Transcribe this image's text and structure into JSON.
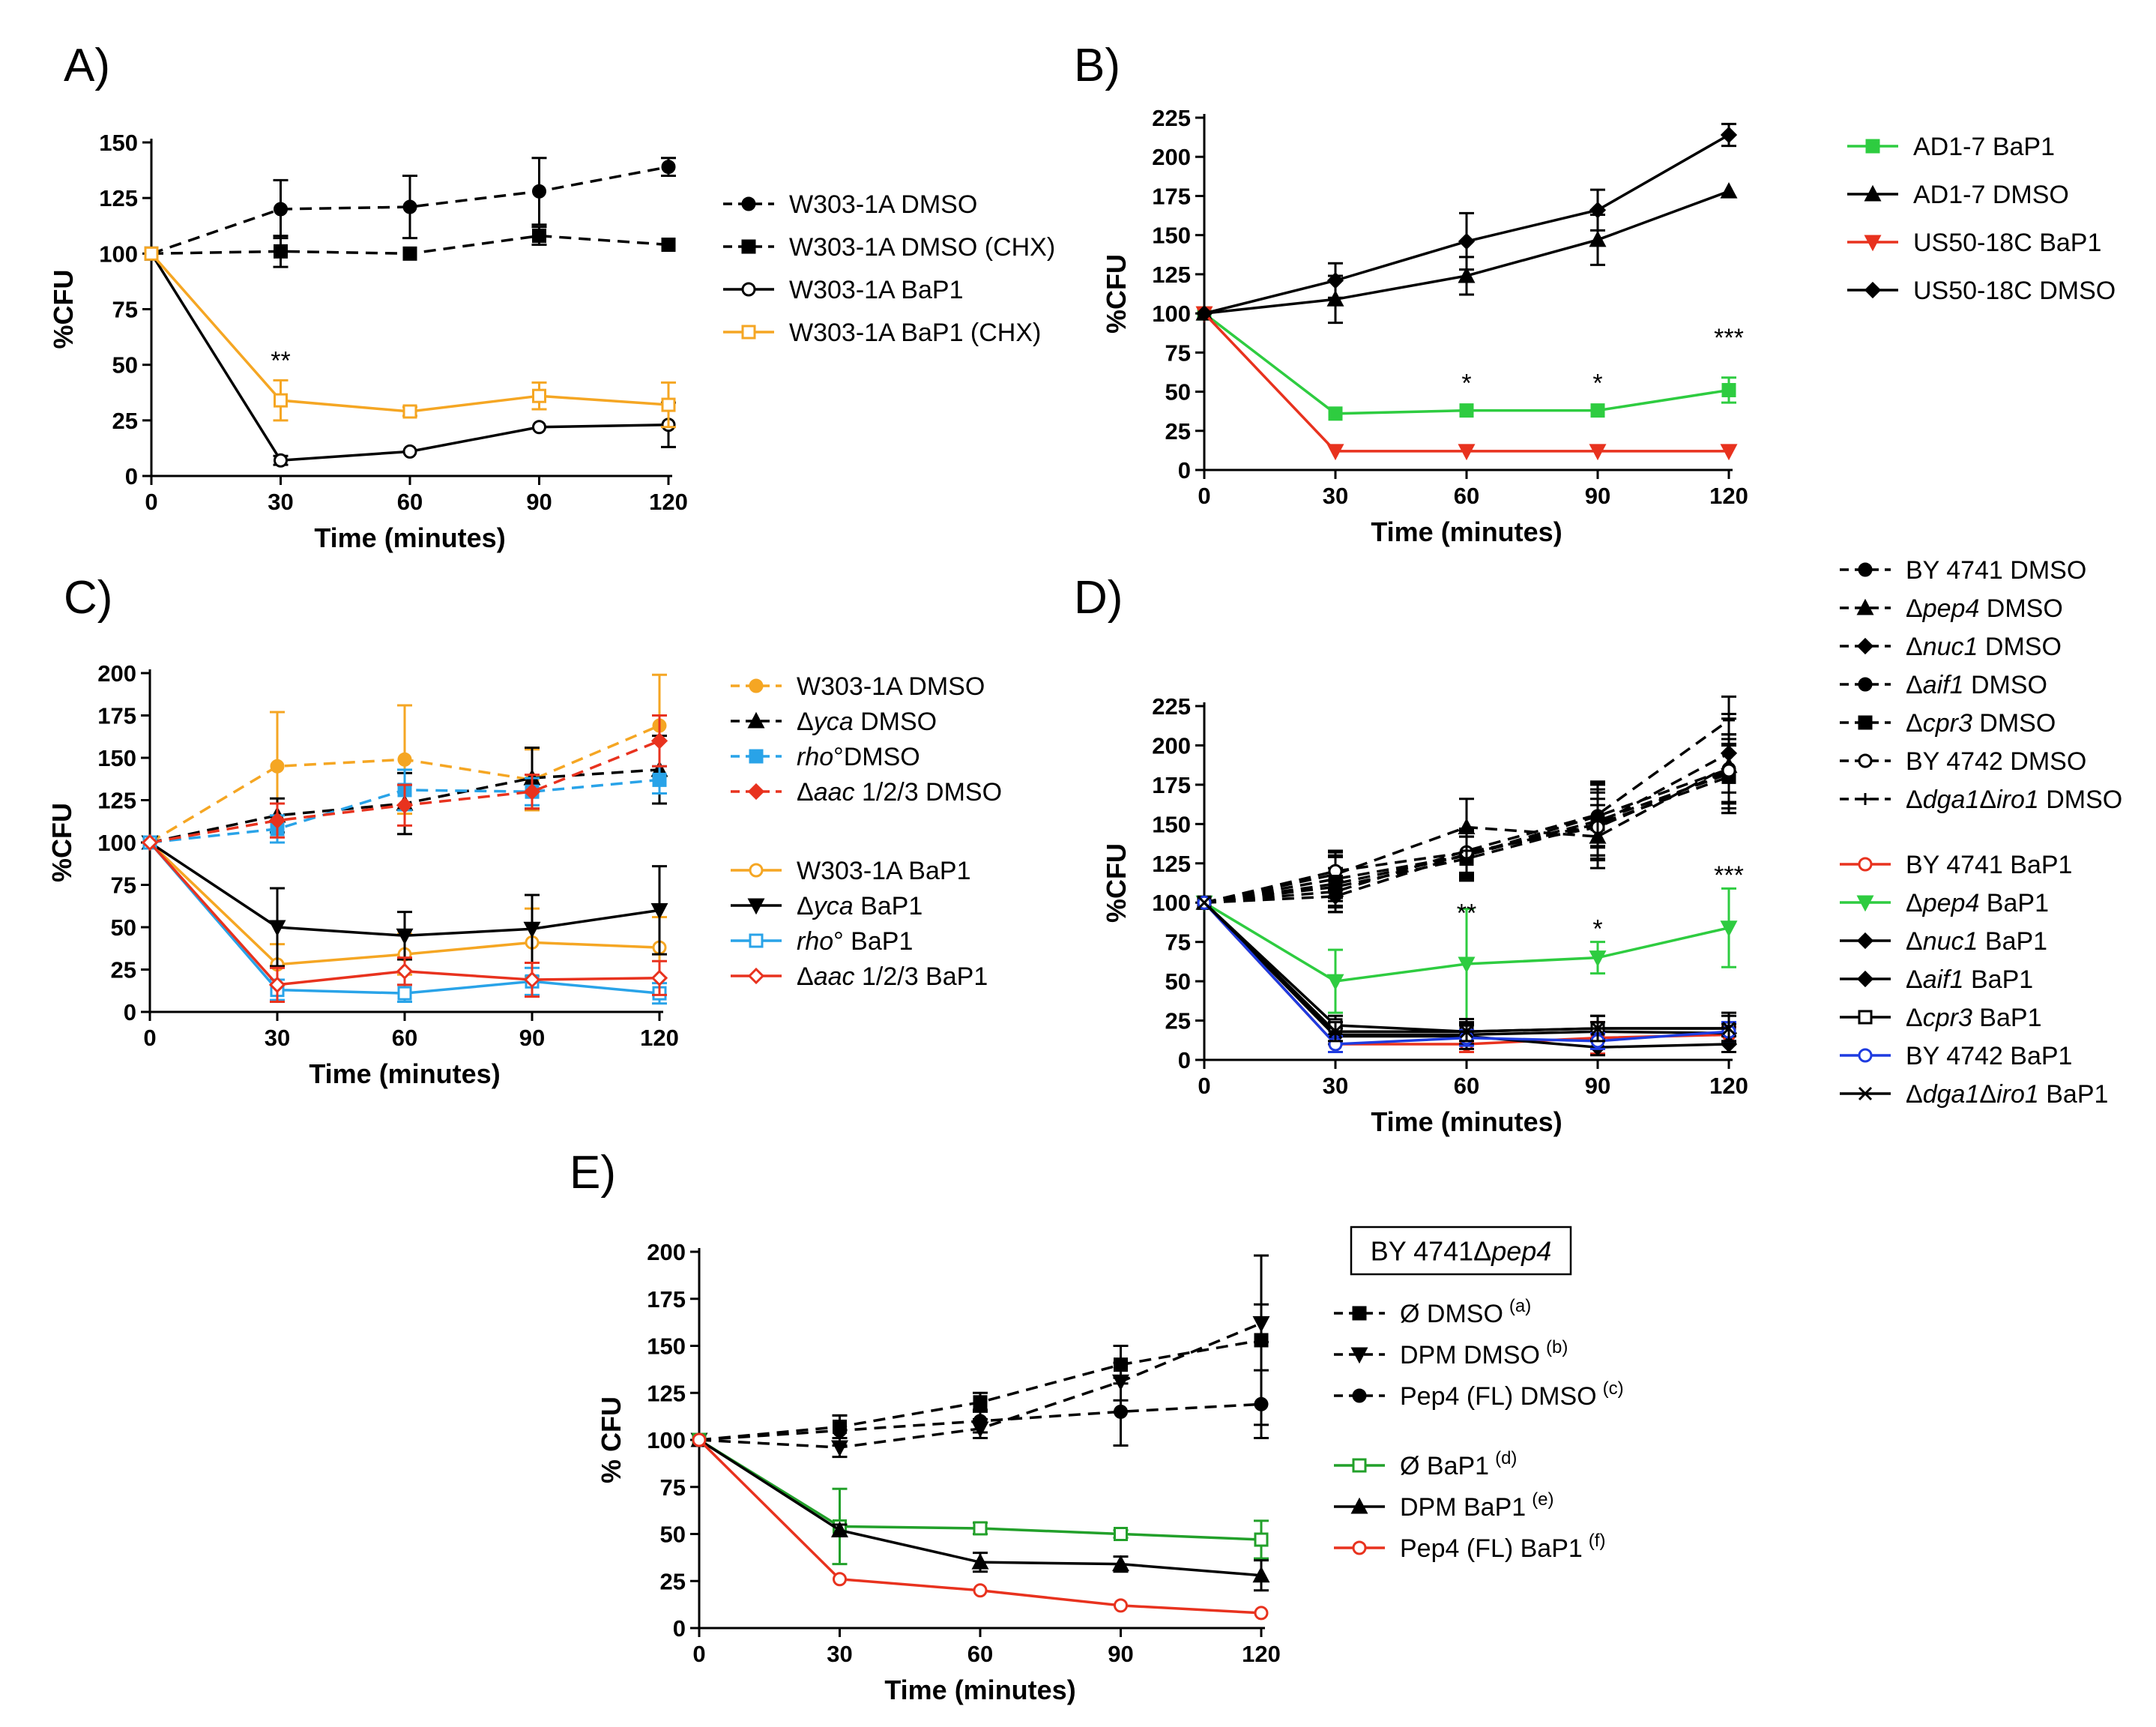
{
  "chart_data": [
    {
      "id": "A",
      "type": "line",
      "panel_label": "A)",
      "x": [
        0,
        30,
        60,
        90,
        120
      ],
      "xlim": [
        0,
        120
      ],
      "ylim": [
        0,
        150
      ],
      "xticks": [
        0,
        30,
        60,
        90,
        120
      ],
      "yticks": [
        0,
        25,
        50,
        75,
        100,
        125,
        150
      ],
      "xlabel": "Time (minutes)",
      "ylabel": "%CFU",
      "annotations": [
        {
          "x": 30,
          "y": 48,
          "text": "**"
        }
      ],
      "series": [
        {
          "name": "W303-1A DMSO",
          "color": "#000000",
          "dash": true,
          "marker": "circle-filled",
          "values": [
            100,
            120,
            121,
            128,
            139
          ],
          "err": [
            0,
            13,
            14,
            15,
            4
          ]
        },
        {
          "name": "W303-1A DMSO (CHX)",
          "color": "#000000",
          "dash": true,
          "marker": "square-filled",
          "values": [
            100,
            101,
            100,
            108,
            104
          ],
          "err": [
            0,
            7,
            0,
            4,
            0
          ]
        },
        {
          "name": "W303-1A BaP1",
          "color": "#000000",
          "dash": false,
          "marker": "circle-open",
          "values": [
            100,
            7,
            11,
            22,
            23
          ],
          "err": [
            0,
            2,
            0,
            0,
            10
          ]
        },
        {
          "name": "W303-1A BaP1 (CHX)",
          "color": "#f5a623",
          "dash": false,
          "marker": "square-open",
          "values": [
            100,
            34,
            29,
            36,
            32
          ],
          "err": [
            0,
            9,
            2,
            6,
            10
          ]
        }
      ]
    },
    {
      "id": "B",
      "type": "line",
      "panel_label": "B)",
      "x": [
        0,
        30,
        60,
        90,
        120
      ],
      "xlim": [
        0,
        120
      ],
      "ylim": [
        0,
        225
      ],
      "xticks": [
        0,
        30,
        60,
        90,
        120
      ],
      "yticks": [
        0,
        25,
        50,
        75,
        100,
        125,
        150,
        175,
        200,
        225
      ],
      "xlabel": "Time (minutes)",
      "ylabel": "%CFU",
      "annotations": [
        {
          "x": 60,
          "y": 50,
          "text": "*"
        },
        {
          "x": 90,
          "y": 50,
          "text": "*"
        },
        {
          "x": 120,
          "y": 79,
          "text": "***"
        }
      ],
      "series": [
        {
          "name": "AD1-7 BaP1",
          "color": "#2ecc40",
          "dash": false,
          "marker": "square-filled",
          "values": [
            100,
            36,
            38,
            38,
            51
          ],
          "err": [
            0,
            0,
            0,
            0,
            8
          ]
        },
        {
          "name": "AD1-7 DMSO",
          "color": "#000000",
          "dash": false,
          "marker": "triangle-up",
          "values": [
            100,
            109,
            124,
            147,
            178
          ],
          "err": [
            0,
            15,
            12,
            16,
            0
          ]
        },
        {
          "name": "US50-18C BaP1",
          "color": "#e8321e",
          "dash": false,
          "marker": "triangle-down",
          "values": [
            100,
            12,
            12,
            12,
            12
          ],
          "err": [
            0,
            0,
            0,
            0,
            0
          ]
        },
        {
          "name": "US50-18C DMSO",
          "color": "#000000",
          "dash": false,
          "marker": "diamond",
          "values": [
            100,
            121,
            146,
            166,
            214
          ],
          "err": [
            0,
            11,
            18,
            13,
            7
          ]
        }
      ]
    },
    {
      "id": "C",
      "type": "line",
      "panel_label": "C)",
      "x": [
        0,
        30,
        60,
        90,
        120
      ],
      "xlim": [
        0,
        120
      ],
      "ylim": [
        0,
        200
      ],
      "xticks": [
        0,
        30,
        60,
        90,
        120
      ],
      "yticks": [
        0,
        25,
        50,
        75,
        100,
        125,
        150,
        175,
        200
      ],
      "xlabel": "Time (minutes)",
      "ylabel": "%CFU",
      "annotations": [],
      "series": [
        {
          "name": "W303-1A DMSO",
          "color": "#f5a623",
          "dash": true,
          "marker": "circle-filled",
          "values": [
            100,
            145,
            149,
            137,
            169
          ],
          "err": [
            0,
            32,
            32,
            18,
            30
          ]
        },
        {
          "name": "Δyca DMSO",
          "color": "#000000",
          "dash": true,
          "marker": "triangle-up",
          "values": [
            100,
            116,
            123,
            138,
            143
          ],
          "err": [
            0,
            10,
            18,
            18,
            20
          ]
        },
        {
          "name": "rho°DMSO",
          "color": "#29a3e8",
          "dash": true,
          "marker": "square-filled",
          "values": [
            100,
            108,
            131,
            130,
            137
          ],
          "err": [
            0,
            8,
            12,
            8,
            8
          ]
        },
        {
          "name": "Δaac 1/2/3 DMSO",
          "color": "#e8321e",
          "dash": true,
          "marker": "diamond",
          "values": [
            100,
            113,
            122,
            130,
            160
          ],
          "err": [
            0,
            10,
            12,
            10,
            15
          ]
        },
        {
          "name": "W303-1A BaP1",
          "color": "#f5a623",
          "dash": false,
          "marker": "circle-open",
          "values": [
            100,
            28,
            34,
            41,
            38
          ],
          "err": [
            0,
            12,
            12,
            20,
            18
          ]
        },
        {
          "name": "Δyca BaP1",
          "color": "#000000",
          "dash": false,
          "marker": "triangle-down",
          "values": [
            100,
            50,
            45,
            49,
            60
          ],
          "err": [
            0,
            23,
            14,
            20,
            26
          ]
        },
        {
          "name": "rho° BaP1",
          "color": "#29a3e8",
          "dash": false,
          "marker": "square-open",
          "values": [
            100,
            13,
            11,
            18,
            11
          ],
          "err": [
            0,
            6,
            5,
            8,
            6
          ]
        },
        {
          "name": "Δaac 1/2/3 BaP1",
          "color": "#e8321e",
          "dash": false,
          "marker": "diamond-open",
          "values": [
            100,
            16,
            24,
            19,
            20
          ],
          "err": [
            0,
            10,
            8,
            10,
            10
          ]
        }
      ]
    },
    {
      "id": "D",
      "type": "line",
      "panel_label": "D)",
      "x": [
        0,
        30,
        60,
        90,
        120
      ],
      "xlim": [
        0,
        120
      ],
      "ylim": [
        0,
        225
      ],
      "xticks": [
        0,
        30,
        60,
        90,
        120
      ],
      "yticks": [
        0,
        25,
        50,
        75,
        100,
        125,
        150,
        175,
        200,
        225
      ],
      "xlabel": "Time (minutes)",
      "ylabel": "%CFU",
      "annotations": [
        {
          "x": 60,
          "y": 88,
          "text": "**"
        },
        {
          "x": 90,
          "y": 78,
          "text": "*"
        },
        {
          "x": 120,
          "y": 112,
          "text": "***"
        }
      ],
      "series": [
        {
          "name": "BY 4741 DMSO",
          "color": "#000000",
          "dash": true,
          "marker": "circle-filled",
          "values": [
            100,
            112,
            130,
            152,
            182
          ],
          "err": [
            0,
            18,
            15,
            25,
            25
          ]
        },
        {
          "name": "Δpep4 DMSO",
          "color": "#000000",
          "dash": true,
          "marker": "triangle-up",
          "values": [
            100,
            118,
            148,
            142,
            187
          ],
          "err": [
            0,
            15,
            18,
            20,
            30
          ]
        },
        {
          "name": "Δnuc1 DMSO",
          "color": "#000000",
          "dash": true,
          "marker": "diamond",
          "values": [
            100,
            104,
            131,
            150,
            195
          ],
          "err": [
            0,
            10,
            15,
            22,
            25
          ]
        },
        {
          "name": "Δaif1 DMSO",
          "color": "#000000",
          "dash": true,
          "marker": "circle-filled",
          "values": [
            100,
            115,
            130,
            155,
            185
          ],
          "err": [
            0,
            14,
            12,
            20,
            22
          ]
        },
        {
          "name": "Δcpr3 DMSO",
          "color": "#000000",
          "dash": true,
          "marker": "square-filled",
          "values": [
            100,
            110,
            128,
            150,
            180
          ],
          "err": [
            0,
            12,
            14,
            20,
            20
          ]
        },
        {
          "name": "BY 4742 DMSO",
          "color": "#000000",
          "dash": true,
          "marker": "circle-open",
          "values": [
            100,
            120,
            132,
            148,
            184
          ],
          "err": [
            0,
            12,
            15,
            18,
            20
          ]
        },
        {
          "name": "Δdga1Δiro1 DMSO",
          "color": "#000000",
          "dash": true,
          "marker": "plus",
          "values": [
            100,
            107,
            133,
            156,
            216
          ],
          "err": [
            0,
            10,
            14,
            20,
            15
          ]
        },
        {
          "name": "BY 4741 BaP1",
          "color": "#e8321e",
          "dash": false,
          "marker": "circle-open",
          "values": [
            100,
            10,
            10,
            14,
            16
          ],
          "err": [
            0,
            5,
            5,
            10,
            5
          ]
        },
        {
          "name": "Δpep4 BaP1",
          "color": "#2ecc40",
          "dash": false,
          "marker": "triangle-down",
          "values": [
            100,
            50,
            61,
            65,
            84
          ],
          "err": [
            0,
            20,
            35,
            10,
            25
          ]
        },
        {
          "name": "Δnuc1 BaP1",
          "color": "#000000",
          "dash": false,
          "marker": "diamond",
          "values": [
            100,
            16,
            16,
            18,
            17
          ],
          "err": [
            0,
            6,
            6,
            6,
            6
          ]
        },
        {
          "name": "Δaif1 BaP1",
          "color": "#000000",
          "dash": false,
          "marker": "diamond",
          "values": [
            100,
            15,
            15,
            8,
            10
          ],
          "err": [
            0,
            5,
            8,
            5,
            5
          ]
        },
        {
          "name": "Δcpr3 BaP1",
          "color": "#000000",
          "dash": false,
          "marker": "square-open",
          "values": [
            100,
            22,
            18,
            20,
            20
          ],
          "err": [
            0,
            6,
            8,
            8,
            10
          ]
        },
        {
          "name": "BY 4742 BaP1",
          "color": "#1e3be0",
          "dash": false,
          "marker": "circle-open",
          "values": [
            100,
            10,
            14,
            12,
            18
          ],
          "err": [
            0,
            5,
            5,
            5,
            6
          ]
        },
        {
          "name": "Δdga1Δiro1 BaP1",
          "color": "#000000",
          "dash": false,
          "marker": "cross",
          "values": [
            100,
            18,
            18,
            20,
            20
          ],
          "err": [
            0,
            6,
            6,
            8,
            8
          ]
        }
      ]
    },
    {
      "id": "E",
      "type": "line",
      "panel_label": "E)",
      "x": [
        0,
        30,
        60,
        90,
        120
      ],
      "xlim": [
        0,
        120
      ],
      "ylim": [
        0,
        200
      ],
      "xticks": [
        0,
        30,
        60,
        90,
        120
      ],
      "yticks": [
        0,
        25,
        50,
        75,
        100,
        125,
        150,
        175,
        200
      ],
      "xlabel": "Time (minutes)",
      "ylabel": "% CFU",
      "legend_title": "BY 4741Δpep4",
      "annotations": [],
      "series": [
        {
          "name": "Ø DMSO",
          "superscript": "(a)",
          "color": "#000000",
          "dash": true,
          "marker": "square-filled",
          "values": [
            100,
            107,
            120,
            140,
            153
          ],
          "err": [
            0,
            6,
            5,
            10,
            45
          ]
        },
        {
          "name": "DPM DMSO",
          "superscript": "(b)",
          "color": "#000000",
          "dash": true,
          "marker": "triangle-down",
          "values": [
            100,
            96,
            106,
            131,
            162
          ],
          "err": [
            0,
            5,
            5,
            10,
            10
          ]
        },
        {
          "name": "Pep4 (FL) DMSO",
          "superscript": "(c)",
          "color": "#000000",
          "dash": true,
          "marker": "circle-filled",
          "values": [
            100,
            105,
            110,
            115,
            119
          ],
          "err": [
            0,
            8,
            6,
            18,
            18
          ]
        },
        {
          "name": "Ø BaP1",
          "superscript": "(d)",
          "color": "#22a02a",
          "dash": false,
          "marker": "square-open",
          "values": [
            100,
            54,
            53,
            50,
            47
          ],
          "err": [
            0,
            20,
            3,
            2,
            10
          ]
        },
        {
          "name": "DPM BaP1",
          "superscript": "(e)",
          "color": "#000000",
          "dash": false,
          "marker": "triangle-up",
          "values": [
            100,
            52,
            35,
            34,
            28
          ],
          "err": [
            0,
            3,
            5,
            4,
            8
          ]
        },
        {
          "name": "Pep4 (FL) BaP1",
          "superscript": "(f)",
          "color": "#e8321e",
          "dash": false,
          "marker": "circle-open",
          "values": [
            100,
            26,
            20,
            12,
            8
          ],
          "err": [
            0,
            0,
            0,
            0,
            0
          ]
        }
      ]
    }
  ]
}
